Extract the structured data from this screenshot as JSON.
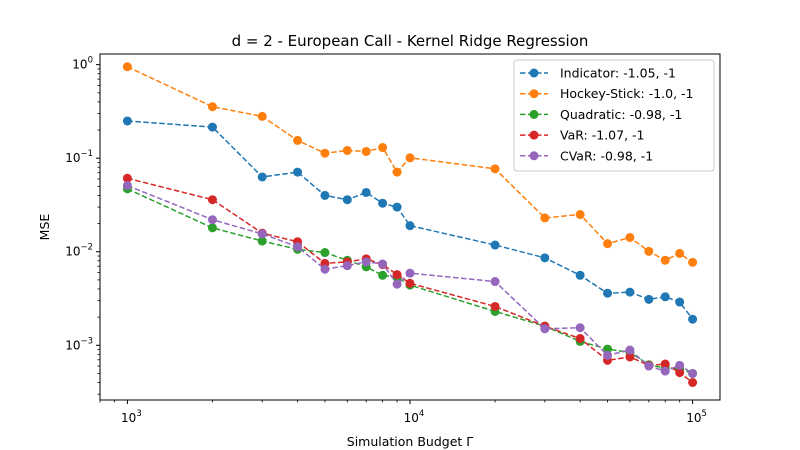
{
  "chart_data": {
    "type": "line",
    "title": "d = 2 - European Call - Kernel Ridge Regression",
    "xlabel": "Simulation Budget Γ",
    "ylabel": "MSE",
    "xscale": "log",
    "yscale": "log",
    "xlim": [
      800,
      125000
    ],
    "ylim": [
      0.00026,
      1.3
    ],
    "grid": false,
    "legend_position": "top-right",
    "x_ticks": [
      {
        "value": 1000,
        "base": "10",
        "exp": "3"
      },
      {
        "value": 10000,
        "base": "10",
        "exp": "4"
      },
      {
        "value": 100000,
        "base": "10",
        "exp": "5"
      }
    ],
    "y_ticks": [
      {
        "value": 0.001,
        "base": "10",
        "exp": "−3"
      },
      {
        "value": 0.01,
        "base": "10",
        "exp": "−2"
      },
      {
        "value": 0.1,
        "base": "10",
        "exp": "−1"
      },
      {
        "value": 1,
        "base": "10",
        "exp": "0"
      }
    ],
    "x": [
      1000,
      2000,
      3000,
      4000,
      5000,
      6000,
      7000,
      8000,
      9000,
      10000,
      20000,
      30000,
      40000,
      50000,
      60000,
      70000,
      80000,
      90000,
      100000
    ],
    "series": [
      {
        "name": "Indicator: -1.05, -1",
        "color": "#1f77b4",
        "values": [
          0.25,
          0.215,
          0.063,
          0.071,
          0.04,
          0.036,
          0.043,
          0.033,
          0.03,
          0.019,
          0.0118,
          0.0086,
          0.0056,
          0.0036,
          0.0037,
          0.0031,
          0.0033,
          0.0029,
          0.0019
        ]
      },
      {
        "name": "Hockey-Stick: -1.0, -1",
        "color": "#ff7f0e",
        "values": [
          0.95,
          0.355,
          0.28,
          0.155,
          0.113,
          0.121,
          0.118,
          0.13,
          0.071,
          0.101,
          0.077,
          0.023,
          0.025,
          0.0122,
          0.0142,
          0.0101,
          0.0081,
          0.0096,
          0.0077
        ]
      },
      {
        "name": "Quadratic: -0.98, -1",
        "color": "#2ca02c",
        "values": [
          0.047,
          0.018,
          0.013,
          0.0106,
          0.0098,
          0.0081,
          0.0069,
          0.0056,
          0.0053,
          0.0044,
          0.0023,
          0.0016,
          0.0011,
          0.00091,
          0.00084,
          0.00062,
          0.00057,
          0.00056,
          0.0005
        ]
      },
      {
        "name": "VaR: -1.07, -1",
        "color": "#d62728",
        "values": [
          0.061,
          0.036,
          0.0158,
          0.0128,
          0.0075,
          0.0078,
          0.0084,
          0.0073,
          0.0057,
          0.0046,
          0.0026,
          0.0016,
          0.00118,
          0.00069,
          0.00075,
          0.00061,
          0.00063,
          0.00051,
          0.0004
        ]
      },
      {
        "name": "CVaR: -0.98, -1",
        "color": "#9467bd",
        "values": [
          0.051,
          0.022,
          0.0155,
          0.0113,
          0.0065,
          0.0071,
          0.0078,
          0.0074,
          0.0045,
          0.0059,
          0.0048,
          0.0015,
          0.00154,
          0.00078,
          0.00089,
          0.0006,
          0.00053,
          0.00061,
          0.0005
        ]
      }
    ]
  }
}
